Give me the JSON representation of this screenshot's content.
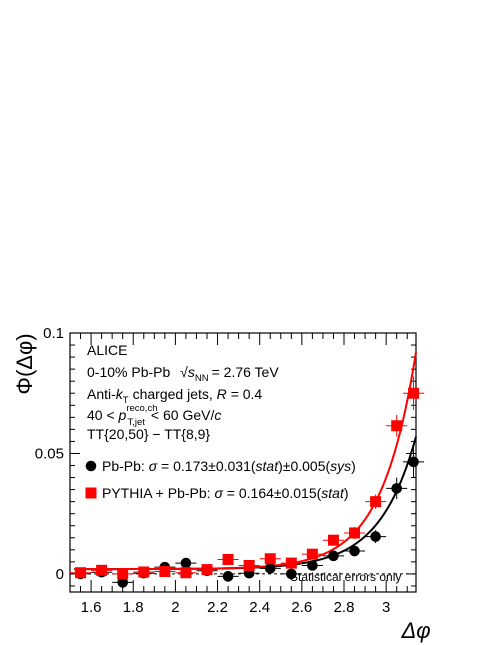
{
  "chart_data": {
    "type": "scatter",
    "xlabel": "Δφ",
    "ylabel": "Φ(Δφ)",
    "xlim": [
      1.5,
      3.1416
    ],
    "ylim": [
      -0.0075,
      0.1
    ],
    "x_ticks": [
      "1.6",
      "1.8",
      "2",
      "2.2",
      "2.4",
      "2.6",
      "2.8",
      "3"
    ],
    "y_ticks": [
      "0",
      "0.05",
      "0.1"
    ],
    "annotations": {
      "experiment": "ALICE",
      "line1_pre": "0-10% Pb-Pb",
      "line1_sqrt_s": "s",
      "line1_sqrt_sub": "NN",
      "line1_post": "= 2.76 TeV",
      "line2_pre": "Anti-",
      "line2_k": "k",
      "line2_k_sub": "T",
      "line2_mid": "charged jets,",
      "line2_R": "R",
      "line2_post": "= 0.4",
      "line3_pre": "40 <",
      "line3_p": "p",
      "line3_sup": "reco,ch",
      "line3_sub": "T,jet",
      "line3_post": "< 60 GeV/",
      "line3_c": "c",
      "line4": "TT{20,50} − TT{8,9}",
      "footnote": "Statistical errors only"
    },
    "series": [
      {
        "name": "Pb-Pb",
        "legend_pre": "Pb-Pb:",
        "legend_sigma": "σ",
        "legend_mid": "= 0.173±0.031(",
        "legend_stat": "stat",
        "legend_mid2": ")±0.005(",
        "legend_sys": "sys",
        "legend_post": ")",
        "marker": "circle",
        "color": "#000000",
        "x": [
          1.55,
          1.65,
          1.75,
          1.85,
          1.95,
          2.05,
          2.15,
          2.25,
          2.35,
          2.45,
          2.55,
          2.65,
          2.75,
          2.85,
          2.95,
          3.05,
          3.13
        ],
        "y": [
          0.0,
          0.0007,
          -0.0035,
          0.0003,
          0.0028,
          0.0045,
          0.0013,
          -0.001,
          0.0003,
          0.0023,
          0.0,
          0.0035,
          0.0075,
          0.0095,
          0.0155,
          0.0355,
          0.0465
        ],
        "yerr": [
          0.0012,
          0.0012,
          0.0015,
          0.0012,
          0.0013,
          0.0013,
          0.0012,
          0.0012,
          0.0012,
          0.0012,
          0.0012,
          0.0015,
          0.0017,
          0.002,
          0.0027,
          0.0045,
          0.0065
        ]
      },
      {
        "name": "PYTHIA + Pb-Pb",
        "legend_pre": "PYTHIA + Pb-Pb:",
        "legend_sigma": "σ",
        "legend_mid": "= 0.164±0.015(",
        "legend_stat": "stat",
        "legend_post": ")",
        "marker": "square",
        "color": "#ff0000",
        "x": [
          1.55,
          1.65,
          1.75,
          1.85,
          1.95,
          2.05,
          2.15,
          2.25,
          2.35,
          2.45,
          2.55,
          2.65,
          2.75,
          2.85,
          2.95,
          3.05,
          3.13
        ],
        "y": [
          0.0005,
          0.0015,
          0.0,
          0.0008,
          0.001,
          0.0005,
          0.0018,
          0.006,
          0.0035,
          0.0063,
          0.0045,
          0.0082,
          0.014,
          0.017,
          0.03,
          0.0615,
          0.075
        ],
        "yerr": [
          0.0012,
          0.0012,
          0.0012,
          0.0012,
          0.0012,
          0.0012,
          0.0012,
          0.0015,
          0.0013,
          0.0015,
          0.0015,
          0.0017,
          0.0022,
          0.0025,
          0.003,
          0.0045,
          0.007
        ]
      }
    ],
    "fits": [
      {
        "series": "Pb-Pb",
        "color": "#000000",
        "sigma": 0.173,
        "amp": 0.055,
        "offset": 0.002
      },
      {
        "series": "PYTHIA + Pb-Pb",
        "color": "#ff0000",
        "sigma": 0.164,
        "amp": 0.09,
        "offset": 0.002
      }
    ]
  }
}
